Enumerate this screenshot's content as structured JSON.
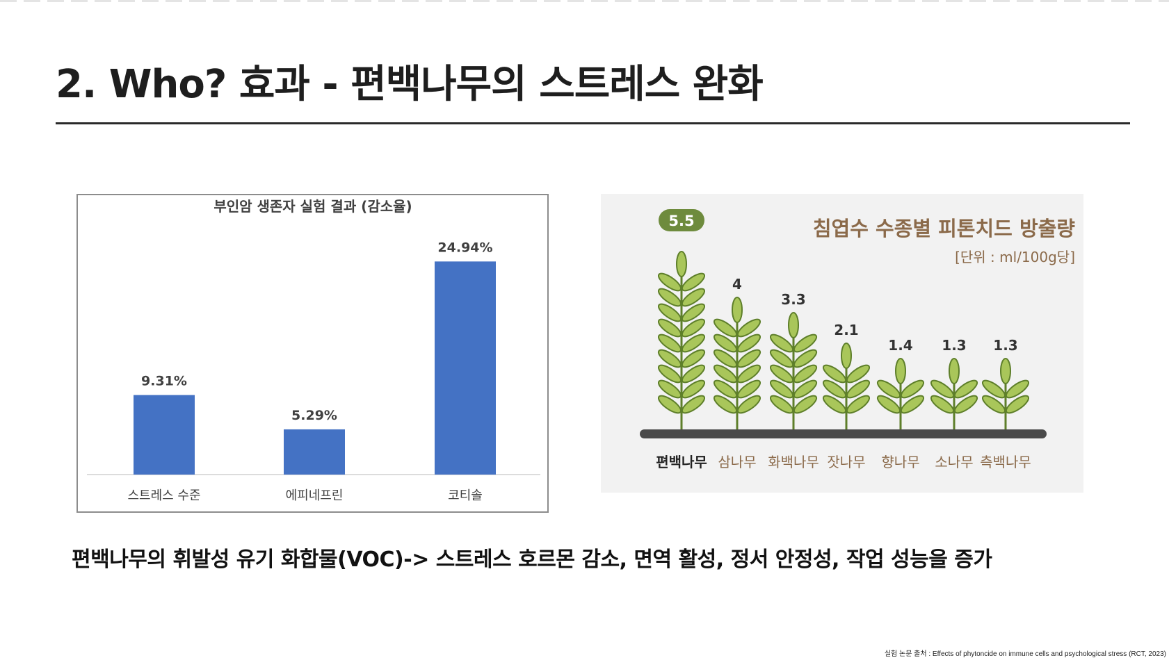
{
  "slide": {
    "title": "2. Who? 효과 - 편백나무의 스트레스 완화",
    "summary": "편백나무의 휘발성 유기 화합물(VOC)-> 스트레스 호르몬 감소, 면역 활성, 정서 안정성, 작업 성능을 증가",
    "source": "실험  논문 출처 : Effects of phytoncide on immune cells and psychological stress (RCT, 2023)"
  },
  "colors": {
    "bar": "#4472c4",
    "leaf_light": "#a9c65a",
    "leaf_dark": "#5e7f2a",
    "badge": "#6e8b3d",
    "ground": "#4a4a4a",
    "label_brown": "#8b6a4a"
  },
  "chart_data": [
    {
      "type": "bar",
      "title": "부인암 생존자 실험 결과 (감소율)",
      "categories": [
        "스트레스 수준",
        "에피네프린",
        "코티솔"
      ],
      "values": [
        9.31,
        5.29,
        24.94
      ],
      "data_labels": [
        "9.31%",
        "5.29%",
        "24.94%"
      ],
      "unit": "%",
      "ylim": [
        0,
        27
      ],
      "grid": false,
      "legend": "none"
    },
    {
      "type": "bar",
      "title": "침엽수 수종별 피톤치드 방출량",
      "subtitle": "[단위 : ml/100g당]",
      "categories": [
        "편백나무",
        "삼나무",
        "화백나무",
        "잣나무",
        "향나무",
        "소나무",
        "측백나무"
      ],
      "values": [
        5.5,
        4,
        3.3,
        2.1,
        1.4,
        1.3,
        1.3
      ],
      "data_labels": [
        "5.5",
        "4",
        "3.3",
        "2.1",
        "1.4",
        "1.3",
        "1.3"
      ],
      "highlight": "편백나무",
      "grid": false,
      "legend": "none"
    }
  ]
}
